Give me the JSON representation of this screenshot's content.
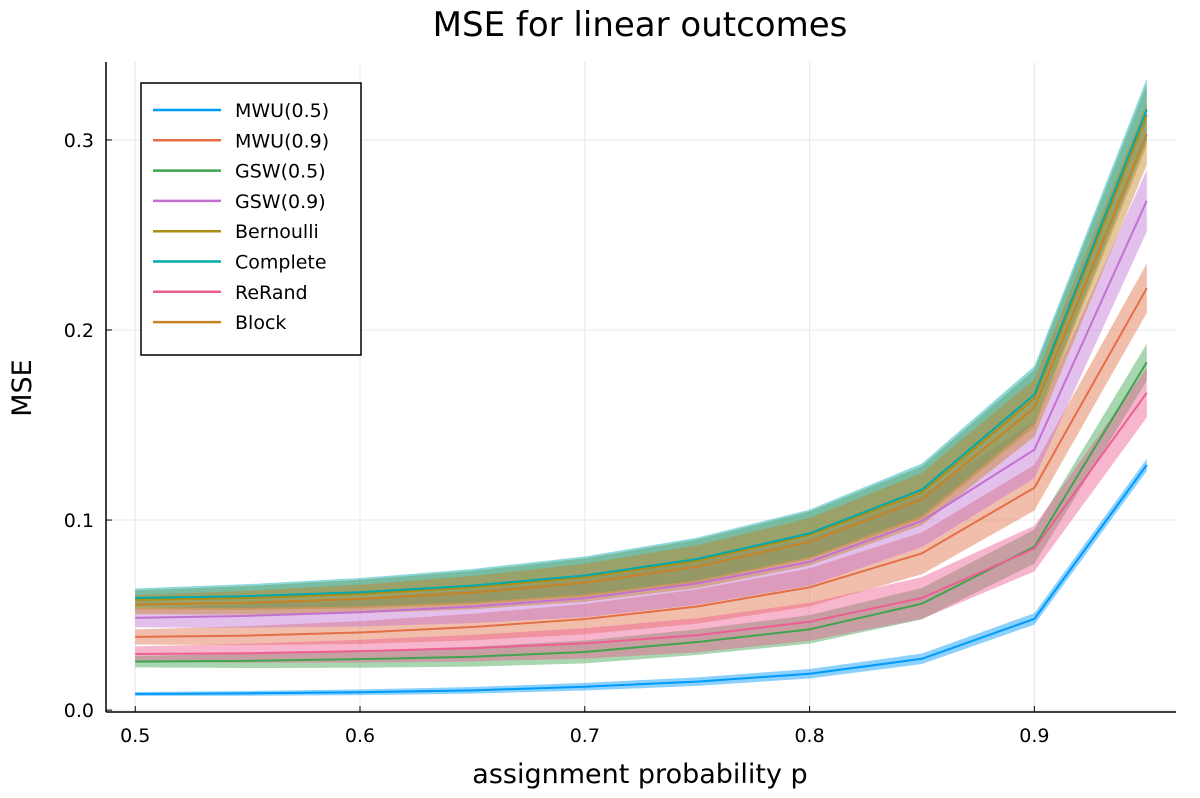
{
  "chart_data": {
    "type": "line",
    "title": "MSE for linear outcomes",
    "xlabel": "assignment probability p",
    "ylabel": "MSE",
    "xlim": [
      0.487,
      0.963
    ],
    "ylim": [
      -0.001,
      0.341
    ],
    "xticks": [
      0.5,
      0.6,
      0.7,
      0.8,
      0.9
    ],
    "xtick_labels": [
      "0.5",
      "0.6",
      "0.7",
      "0.8",
      "0.9"
    ],
    "yticks": [
      0.0,
      0.1,
      0.2,
      0.3
    ],
    "ytick_labels": [
      "0.0",
      "0.1",
      "0.2",
      "0.3"
    ],
    "grid": true,
    "legend_position": "top-left",
    "x": [
      0.5,
      0.55,
      0.6,
      0.65,
      0.7,
      0.75,
      0.8,
      0.85,
      0.9,
      0.95
    ],
    "series": [
      {
        "name": "MWU(0.5)",
        "color": "#009AFA",
        "band": 0.001,
        "values": [
          0.0085,
          0.0088,
          0.0094,
          0.0104,
          0.0123,
          0.015,
          0.0191,
          0.027,
          0.048,
          0.129
        ]
      },
      {
        "name": "MWU(0.9)",
        "color": "#E36F47",
        "band": 0.004,
        "values": [
          0.0385,
          0.0392,
          0.0408,
          0.0437,
          0.0479,
          0.0545,
          0.0646,
          0.0825,
          0.117,
          0.222
        ]
      },
      {
        "name": "GSW(0.5)",
        "color": "#3EA44E",
        "band": 0.003,
        "values": [
          0.0255,
          0.0259,
          0.0268,
          0.0281,
          0.0306,
          0.0358,
          0.0425,
          0.056,
          0.086,
          0.183
        ]
      },
      {
        "name": "GSW(0.9)",
        "color": "#C271D2",
        "band": 0.005,
        "values": [
          0.0485,
          0.0496,
          0.0515,
          0.0545,
          0.0589,
          0.0667,
          0.078,
          0.0995,
          0.137,
          0.268
        ]
      },
      {
        "name": "Bernoulli",
        "color": "#AC8D18",
        "band": 0.005,
        "values": [
          0.058,
          0.059,
          0.0611,
          0.0645,
          0.0698,
          0.0785,
          0.092,
          0.1145,
          0.164,
          0.313
        ]
      },
      {
        "name": "Complete",
        "color": "#00A9AD",
        "band": 0.005,
        "values": [
          0.059,
          0.06,
          0.062,
          0.0655,
          0.0708,
          0.0795,
          0.093,
          0.116,
          0.166,
          0.316
        ]
      },
      {
        "name": "ReRand",
        "color": "#ED5E93",
        "band": 0.004,
        "values": [
          0.0295,
          0.0299,
          0.031,
          0.0326,
          0.0351,
          0.0394,
          0.0465,
          0.059,
          0.085,
          0.167
        ]
      },
      {
        "name": "Block",
        "color": "#C68225",
        "band": 0.005,
        "values": [
          0.0555,
          0.0565,
          0.0585,
          0.0618,
          0.067,
          0.0755,
          0.0885,
          0.111,
          0.159,
          0.303
        ]
      }
    ]
  }
}
